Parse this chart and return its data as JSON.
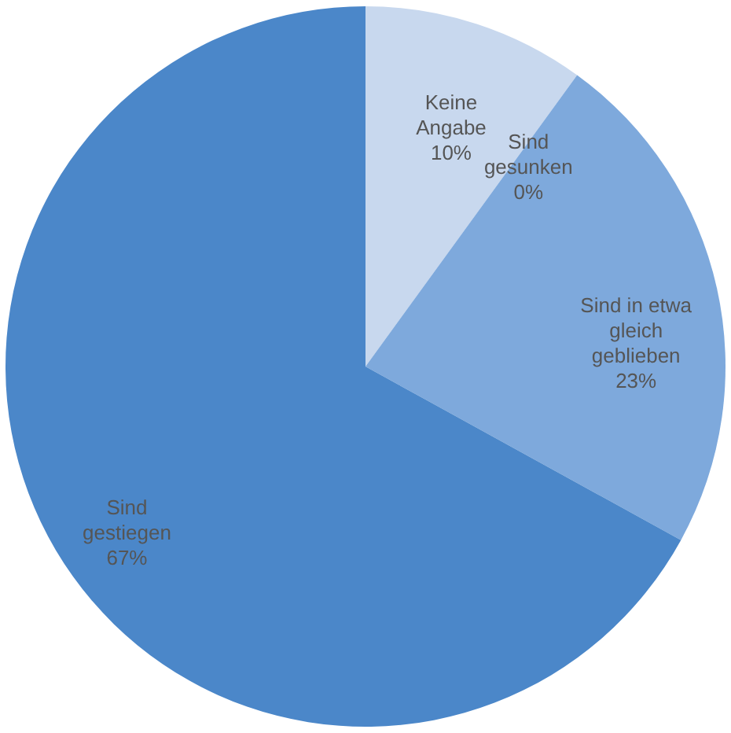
{
  "chart_data": {
    "type": "pie",
    "categories": [
      "Keine\nAngabe",
      "Sind\ngesunken",
      "Sind in etwa\ngleich\ngeblieben",
      "Sind\ngestiegen"
    ],
    "values": [
      10,
      0,
      23,
      67
    ],
    "value_labels": [
      "10%",
      "0%",
      "23%",
      "67%"
    ],
    "colors": [
      "#c8d8ee",
      "#a3c0e6",
      "#7ea9dc",
      "#4b87c9"
    ]
  }
}
